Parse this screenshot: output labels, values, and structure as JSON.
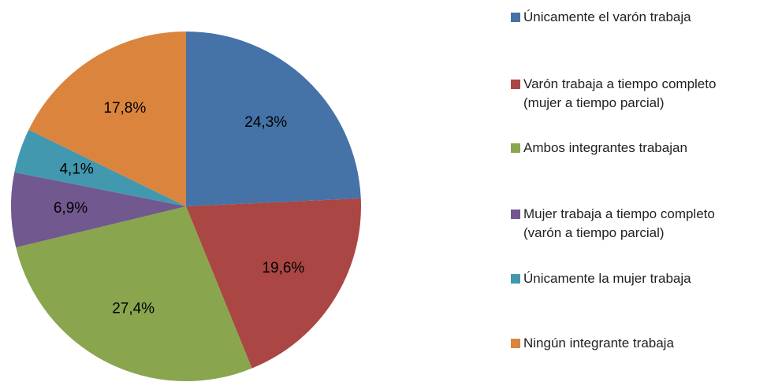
{
  "chart_data": {
    "type": "pie",
    "categories": [
      "Únicamente el varón trabaja",
      "Varón trabaja a tiempo completo\n(mujer a tiempo parcial)",
      "Ambos integrantes trabajan",
      "Mujer trabaja a tiempo completo\n(varón a tiempo parcial)",
      "Únicamente la mujer trabaja",
      "Ningún integrante trabaja"
    ],
    "values": [
      24.3,
      19.6,
      27.4,
      6.9,
      4.1,
      17.8
    ],
    "value_labels": [
      "24,3%",
      "19,6%",
      "27,4%",
      "6,9%",
      "4,1%",
      "17,8%"
    ],
    "colors": [
      "#4572a7",
      "#aa4643",
      "#89a54e",
      "#71588f",
      "#4198af",
      "#db843d"
    ],
    "legend": "right"
  }
}
